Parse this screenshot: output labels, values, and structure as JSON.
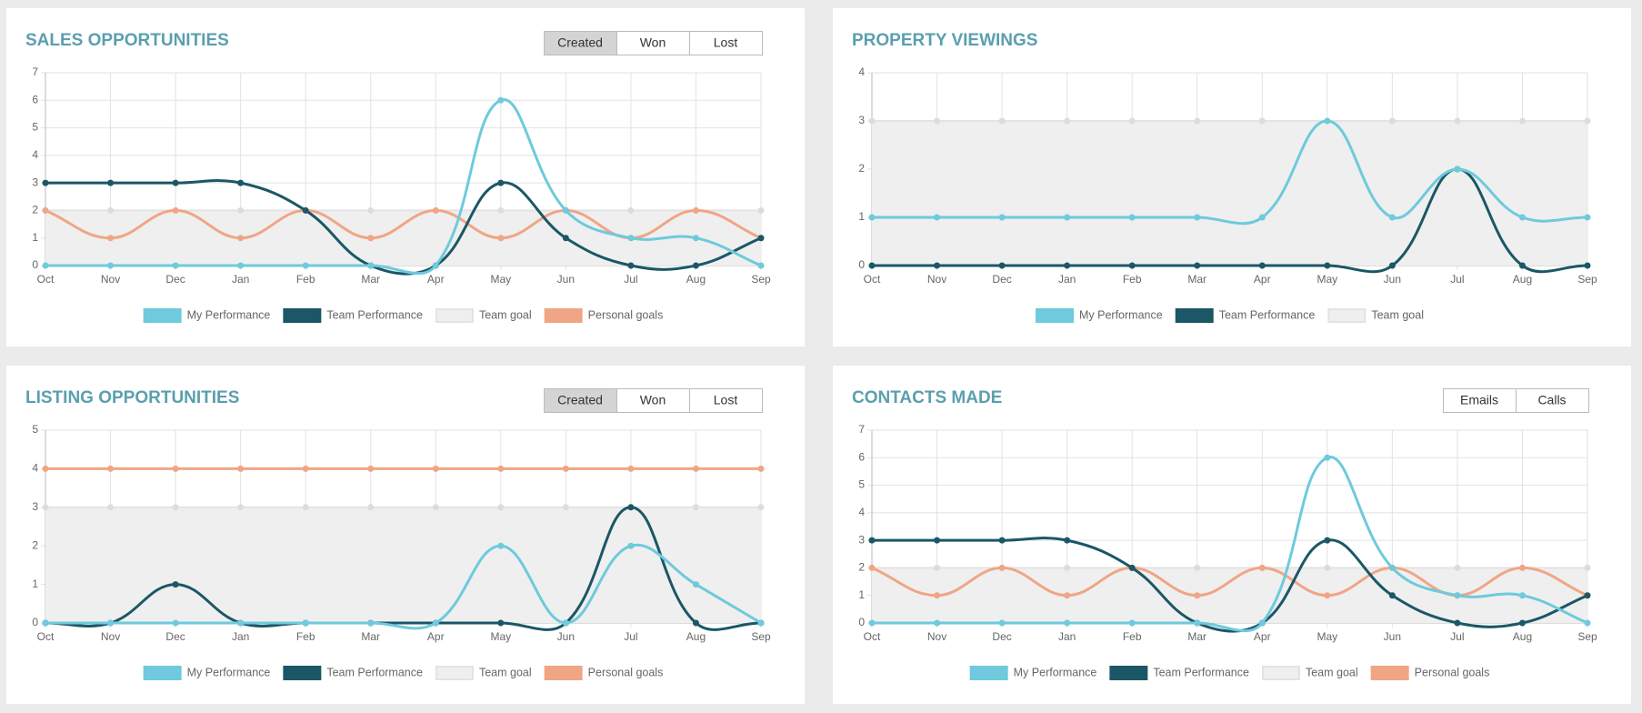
{
  "chart_data": [
    {
      "type": "line",
      "title": "SALES OPPORTUNITIES",
      "buttons": [
        "Created",
        "Won",
        "Lost"
      ],
      "categories": [
        "Oct",
        "Nov",
        "Dec",
        "Jan",
        "Feb",
        "Mar",
        "Apr",
        "May",
        "Jun",
        "Jul",
        "Aug",
        "Sep"
      ],
      "ylim": [
        0,
        7
      ],
      "yticks": [
        0,
        1,
        2,
        3,
        4,
        5,
        6,
        7
      ],
      "grid": true,
      "series": [
        {
          "name": "My Performance",
          "color": "#6ecadc",
          "values": [
            0,
            0,
            0,
            0,
            0,
            0,
            0,
            6,
            2,
            1,
            1,
            0
          ]
        },
        {
          "name": "Team Performance",
          "color": "#1b5766",
          "values": [
            3,
            3,
            3,
            3,
            2,
            0,
            0,
            3,
            1,
            0,
            0,
            1
          ]
        },
        {
          "name": "Team goal",
          "color": "#e3e3e3",
          "area": true,
          "values": [
            2,
            2,
            2,
            2,
            2,
            2,
            2,
            2,
            2,
            2,
            2,
            2
          ]
        },
        {
          "name": "Personal goals",
          "color": "#f0a585",
          "values": [
            2,
            1,
            2,
            1,
            2,
            1,
            2,
            1,
            2,
            1,
            2,
            1
          ]
        }
      ]
    },
    {
      "type": "line",
      "title": "PROPERTY VIEWINGS",
      "categories": [
        "Oct",
        "Nov",
        "Dec",
        "Jan",
        "Feb",
        "Mar",
        "Apr",
        "May",
        "Jun",
        "Jul",
        "Aug",
        "Sep"
      ],
      "ylim": [
        0,
        4
      ],
      "yticks": [
        0,
        1,
        2,
        3,
        4
      ],
      "grid": true,
      "series": [
        {
          "name": "My Performance",
          "color": "#6ecadc",
          "values": [
            1,
            1,
            1,
            1,
            1,
            1,
            1,
            3,
            1,
            2,
            1,
            1
          ]
        },
        {
          "name": "Team Performance",
          "color": "#1b5766",
          "values": [
            0,
            0,
            0,
            0,
            0,
            0,
            0,
            0,
            0,
            2,
            0,
            0
          ]
        },
        {
          "name": "Team goal",
          "color": "#e3e3e3",
          "area": true,
          "values": [
            3,
            3,
            3,
            3,
            3,
            3,
            3,
            3,
            3,
            3,
            3,
            3
          ]
        }
      ]
    },
    {
      "type": "line",
      "title": "LISTING OPPORTUNITIES",
      "buttons": [
        "Created",
        "Won",
        "Lost"
      ],
      "categories": [
        "Oct",
        "Nov",
        "Dec",
        "Jan",
        "Feb",
        "Mar",
        "Apr",
        "May",
        "Jun",
        "Jul",
        "Aug",
        "Sep"
      ],
      "ylim": [
        0,
        5
      ],
      "yticks": [
        0,
        1,
        2,
        3,
        4,
        5
      ],
      "grid": true,
      "series": [
        {
          "name": "My Performance",
          "color": "#6ecadc",
          "values": [
            0,
            0,
            0,
            0,
            0,
            0,
            0,
            2,
            0,
            2,
            1,
            0
          ]
        },
        {
          "name": "Team Performance",
          "color": "#1b5766",
          "values": [
            0,
            0,
            1,
            0,
            0,
            0,
            0,
            0,
            0,
            3,
            0,
            0
          ]
        },
        {
          "name": "Team goal",
          "color": "#e3e3e3",
          "area": true,
          "values": [
            3,
            3,
            3,
            3,
            3,
            3,
            3,
            3,
            3,
            3,
            3,
            3
          ]
        },
        {
          "name": "Personal goals",
          "color": "#f0a585",
          "values": [
            4,
            4,
            4,
            4,
            4,
            4,
            4,
            4,
            4,
            4,
            4,
            4
          ]
        }
      ]
    },
    {
      "type": "line",
      "title": "CONTACTS MADE",
      "buttons": [
        "Emails",
        "Calls"
      ],
      "categories": [
        "Oct",
        "Nov",
        "Dec",
        "Jan",
        "Feb",
        "Mar",
        "Apr",
        "May",
        "Jun",
        "Jul",
        "Aug",
        "Sep"
      ],
      "ylim": [
        0,
        7
      ],
      "yticks": [
        0,
        1,
        2,
        3,
        4,
        5,
        6,
        7
      ],
      "grid": true,
      "series": [
        {
          "name": "My Performance",
          "color": "#6ecadc",
          "values": [
            0,
            0,
            0,
            0,
            0,
            0,
            0,
            6,
            2,
            1,
            1,
            0
          ]
        },
        {
          "name": "Team Performance",
          "color": "#1b5766",
          "values": [
            3,
            3,
            3,
            3,
            2,
            0,
            0,
            3,
            1,
            0,
            0,
            1
          ]
        },
        {
          "name": "Team goal",
          "color": "#e3e3e3",
          "area": true,
          "values": [
            2,
            2,
            2,
            2,
            2,
            2,
            2,
            2,
            2,
            2,
            2,
            2
          ]
        },
        {
          "name": "Personal goals",
          "color": "#f0a585",
          "values": [
            2,
            1,
            2,
            1,
            2,
            1,
            2,
            1,
            2,
            1,
            2,
            1
          ]
        }
      ]
    }
  ]
}
